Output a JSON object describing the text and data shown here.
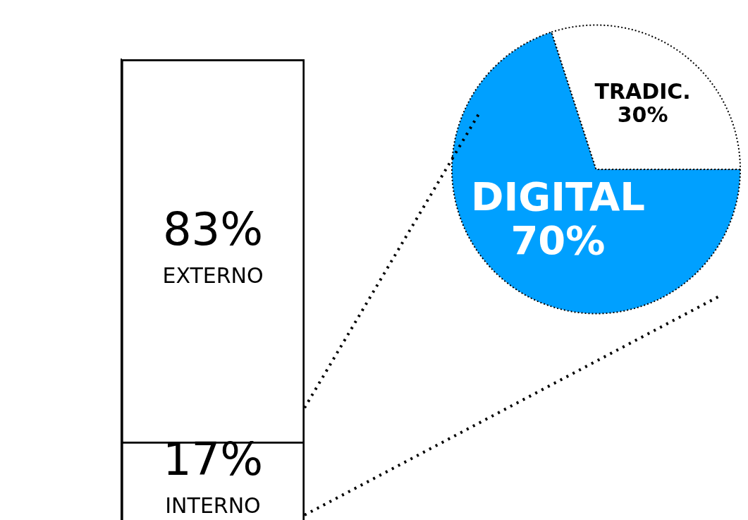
{
  "chart_data": [
    {
      "type": "bar",
      "stacked": true,
      "categories": [
        null
      ],
      "tick_labels": false,
      "grid": false,
      "legend": false,
      "series": [
        {
          "name": "INTERNO",
          "color": "#000000",
          "values": [
            17
          ],
          "value_labels": [
            "17%"
          ]
        },
        {
          "name": "EXTERNO",
          "color": "#000000",
          "values": [
            83
          ],
          "value_labels": [
            "83%"
          ]
        }
      ]
    },
    {
      "type": "pie",
      "categories": [
        "DIGITAL",
        "TRADIC."
      ],
      "values": [
        70,
        30
      ],
      "colors": [
        "#00a0ff",
        "#ffffff"
      ],
      "value_labels": [
        "70%",
        "30%"
      ],
      "legend": false
    }
  ]
}
